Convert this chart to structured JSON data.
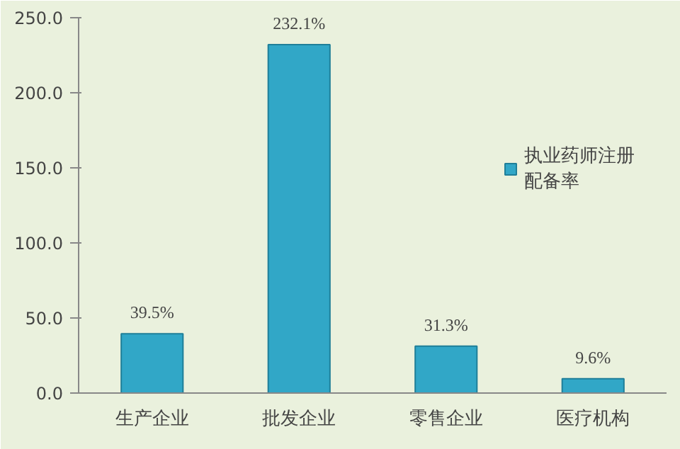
{
  "chart_data": {
    "type": "bar",
    "categories": [
      "生产企业",
      "批发企业",
      "零售企业",
      "医疗机构"
    ],
    "series": [
      {
        "name": "执业药师注册配备率",
        "color": "#31a7c7",
        "values": [
          39.5,
          232.1,
          31.3,
          9.6
        ],
        "value_labels": [
          "39.5%",
          "232.1%",
          "31.3%",
          "9.6%"
        ]
      }
    ],
    "ylim": [
      0,
      250
    ],
    "yticks": [
      {
        "value": 0,
        "label": "0.0"
      },
      {
        "value": 50,
        "label": "50.0"
      },
      {
        "value": 100,
        "label": "100.0"
      },
      {
        "value": 150,
        "label": "150.0"
      },
      {
        "value": 200,
        "label": "200.0"
      },
      {
        "value": 250,
        "label": "250.0"
      }
    ],
    "legend": "right",
    "grid": false
  }
}
